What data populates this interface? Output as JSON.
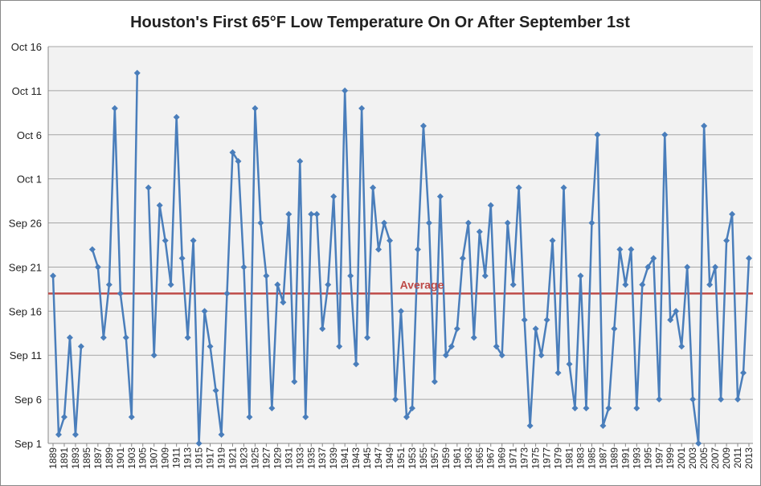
{
  "chart_data": {
    "type": "line",
    "title": "Houston's First 65°F Low Temperature On Or After September 1st",
    "x": [
      1889,
      1890,
      1891,
      1892,
      1893,
      1894,
      1895,
      1896,
      1897,
      1898,
      1899,
      1900,
      1901,
      1902,
      1903,
      1904,
      1905,
      1906,
      1907,
      1908,
      1909,
      1910,
      1911,
      1912,
      1913,
      1914,
      1915,
      1916,
      1917,
      1918,
      1919,
      1920,
      1921,
      1922,
      1923,
      1924,
      1925,
      1926,
      1927,
      1928,
      1929,
      1930,
      1931,
      1932,
      1933,
      1934,
      1935,
      1936,
      1937,
      1938,
      1939,
      1940,
      1941,
      1942,
      1943,
      1944,
      1945,
      1946,
      1947,
      1948,
      1949,
      1950,
      1951,
      1952,
      1953,
      1954,
      1955,
      1956,
      1957,
      1958,
      1959,
      1960,
      1961,
      1962,
      1963,
      1964,
      1965,
      1966,
      1967,
      1968,
      1969,
      1970,
      1971,
      1972,
      1973,
      1974,
      1975,
      1976,
      1977,
      1978,
      1979,
      1980,
      1981,
      1982,
      1983,
      1984,
      1985,
      1986,
      1987,
      1988,
      1989,
      1990,
      1991,
      1992,
      1993,
      1994,
      1995,
      1996,
      1997,
      1998,
      1999,
      2000,
      2001,
      2002,
      2003,
      2004,
      2005,
      2006,
      2007,
      2008,
      2009,
      2010,
      2011,
      2012,
      2013
    ],
    "series": [
      {
        "color": "#4a7ebb",
        "values": [
          20,
          2,
          4,
          13,
          2,
          12,
          null,
          23,
          21,
          13,
          19,
          39,
          18,
          13,
          4,
          43,
          null,
          30,
          11,
          28,
          24,
          19,
          38,
          22,
          13,
          24,
          1,
          16,
          12,
          7,
          2,
          18,
          34,
          33,
          21,
          4,
          39,
          26,
          20,
          5,
          19,
          17,
          27,
          8,
          33,
          4,
          27,
          27,
          14,
          19,
          29,
          12,
          41,
          20,
          10,
          39,
          13,
          30,
          23,
          26,
          24,
          6,
          16,
          4,
          5,
          23,
          37,
          26,
          8,
          29,
          11,
          12,
          14,
          22,
          26,
          13,
          25,
          20,
          28,
          12,
          11,
          26,
          19,
          30,
          15,
          3,
          14,
          11,
          15,
          24,
          9,
          30,
          10,
          5,
          20,
          5,
          26,
          36,
          3,
          5,
          14,
          23,
          19,
          23,
          5,
          19,
          21,
          22,
          6,
          36,
          15,
          16,
          12,
          21,
          6,
          1,
          37,
          19,
          21,
          6,
          24,
          27,
          6,
          9,
          22
        ]
      }
    ],
    "average": {
      "label": "Average",
      "value": 18,
      "color": "#be4b48"
    },
    "xlim": [
      1889,
      2013
    ],
    "xticks": [
      1889,
      1891,
      1893,
      1895,
      1897,
      1899,
      1901,
      1903,
      1905,
      1907,
      1909,
      1911,
      1913,
      1915,
      1917,
      1919,
      1921,
      1923,
      1925,
      1927,
      1929,
      1931,
      1933,
      1935,
      1937,
      1939,
      1941,
      1943,
      1945,
      1947,
      1949,
      1951,
      1953,
      1955,
      1957,
      1959,
      1961,
      1963,
      1965,
      1967,
      1969,
      1971,
      1973,
      1975,
      1977,
      1979,
      1981,
      1983,
      1985,
      1987,
      1989,
      1991,
      1993,
      1995,
      1997,
      1999,
      2001,
      2003,
      2005,
      2007,
      2009,
      2011,
      2013
    ],
    "ylim": [
      1,
      46
    ],
    "yticks": [
      {
        "value": 1,
        "label": "Sep 1"
      },
      {
        "value": 6,
        "label": "Sep 6"
      },
      {
        "value": 11,
        "label": "Sep 11"
      },
      {
        "value": 16,
        "label": "Sep 16"
      },
      {
        "value": 21,
        "label": "Sep 21"
      },
      {
        "value": 26,
        "label": "Sep 26"
      },
      {
        "value": 31,
        "label": "Oct 1"
      },
      {
        "value": 36,
        "label": "Oct 6"
      },
      {
        "value": 41,
        "label": "Oct 11"
      },
      {
        "value": 46,
        "label": "Oct 16"
      }
    ],
    "grid": true
  }
}
